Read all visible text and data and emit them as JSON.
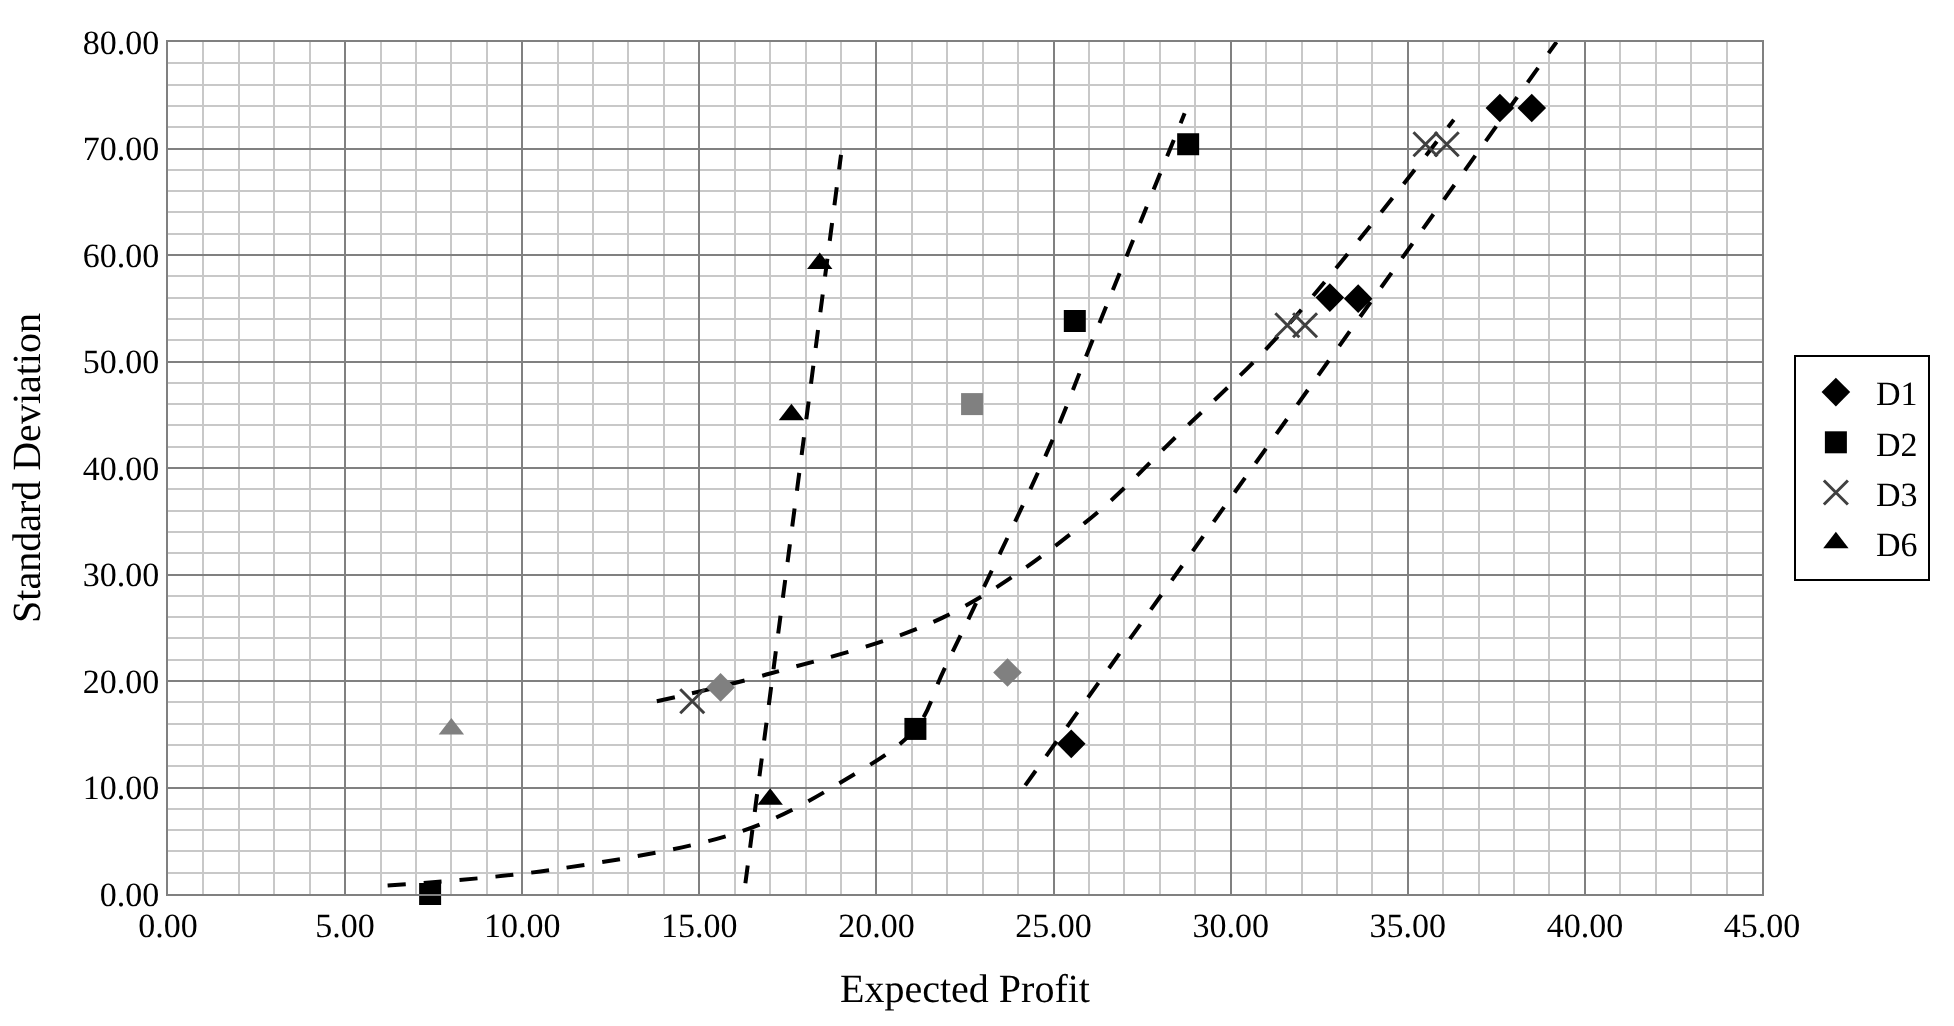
{
  "chart_data": {
    "type": "scatter",
    "xlabel": "Expected Profit",
    "ylabel": "Standard Deviation",
    "xlim": [
      0,
      45
    ],
    "ylim": [
      0,
      80
    ],
    "xticks": [
      {
        "value": 0,
        "label": "0.00"
      },
      {
        "value": 5,
        "label": "5.00"
      },
      {
        "value": 10,
        "label": "10.00"
      },
      {
        "value": 15,
        "label": "15.00"
      },
      {
        "value": 20,
        "label": "20.00"
      },
      {
        "value": 25,
        "label": "25.00"
      },
      {
        "value": 30,
        "label": "30.00"
      },
      {
        "value": 35,
        "label": "35.00"
      },
      {
        "value": 40,
        "label": "40.00"
      },
      {
        "value": 45,
        "label": "45.00"
      }
    ],
    "yticks": [
      {
        "value": 0,
        "label": "0.00"
      },
      {
        "value": 10,
        "label": "10.00"
      },
      {
        "value": 20,
        "label": "20.00"
      },
      {
        "value": 30,
        "label": "30.00"
      },
      {
        "value": 40,
        "label": "40.00"
      },
      {
        "value": 50,
        "label": "50.00"
      },
      {
        "value": 60,
        "label": "60.00"
      },
      {
        "value": 70,
        "label": "70.00"
      },
      {
        "value": 80,
        "label": "80.00"
      }
    ],
    "grid": true,
    "legend": "right",
    "series": [
      {
        "type": "line",
        "color": "#000000",
        "line_style": "dashed",
        "marker": "none",
        "x": [
          24.2,
          39.2
        ],
        "values": [
          10.2,
          80
        ]
      },
      {
        "type": "line",
        "color": "#000000",
        "line_style": "dashed",
        "marker": "none",
        "x": [
          6.2,
          10.9,
          16.2,
          19.0,
          21.1,
          21.9,
          24.9,
          26.1,
          28.7
        ],
        "values": [
          0.8,
          2.3,
          5.9,
          10.5,
          15.5,
          21,
          42.1,
          52,
          73.3
        ]
      },
      {
        "type": "line",
        "color": "#000000",
        "line_style": "dashed",
        "marker": "none",
        "x": [
          13.8,
          17.0,
          21.9,
          25.9,
          28.6,
          31.4,
          36.3
        ],
        "values": [
          18.1,
          20.7,
          26,
          34.9,
          43.4,
          52.6,
          72.7
        ]
      },
      {
        "type": "line",
        "color": "#000000",
        "line_style": "dashed",
        "marker": "none",
        "x": [
          16.3,
          19.0
        ],
        "values": [
          1.0,
          69.4
        ]
      },
      {
        "name": "D1",
        "color": "#000000",
        "marker": "diamond",
        "x": [
          25.5,
          32.8,
          33.6,
          37.6,
          38.5
        ],
        "values": [
          14.1,
          56.0,
          55.9,
          73.8,
          73.8
        ]
      },
      {
        "name": "D2",
        "color": "#000000",
        "marker": "square",
        "x": [
          7.4,
          21.1,
          25.6,
          28.8
        ],
        "values": [
          0,
          15.5,
          53.8,
          70.4
        ]
      },
      {
        "name": "D3",
        "color": "#404040",
        "marker": "cross",
        "x": [
          14.8,
          31.6,
          32.1,
          35.5,
          36.1
        ],
        "values": [
          18.1,
          53.4,
          53.4,
          70.4,
          70.4
        ]
      },
      {
        "name": "D6",
        "color": "#000000",
        "marker": "triangle",
        "x": [
          17.0,
          17.6,
          18.4
        ],
        "values": [
          8.9,
          45.0,
          59.2
        ]
      },
      {
        "color": "#808080",
        "marker": "diamond",
        "x": [
          15.6,
          23.7
        ],
        "values": [
          19.4,
          20.8
        ]
      },
      {
        "color": "#808080",
        "marker": "square",
        "x": [
          22.7
        ],
        "values": [
          46.0
        ]
      },
      {
        "color": "#808080",
        "marker": "triangle",
        "x": [
          8.0
        ],
        "values": [
          15.5
        ]
      }
    ]
  }
}
